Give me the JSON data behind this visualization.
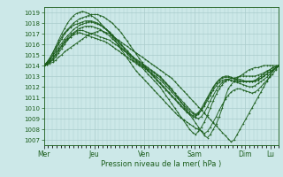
{
  "title": "",
  "xlabel": "Pression niveau de la mer( hPa )",
  "background_color": "#cce8e8",
  "grid_color": "#aacccc",
  "line_color": "#1a5c1a",
  "ylim": [
    1006.5,
    1019.5
  ],
  "yticks": [
    1007,
    1008,
    1009,
    1010,
    1011,
    1012,
    1013,
    1014,
    1015,
    1016,
    1017,
    1018,
    1019
  ],
  "day_labels": [
    "Mer",
    "Jeu",
    "Ven",
    "Sam",
    "Dim",
    "Lu"
  ],
  "day_positions": [
    0,
    48,
    96,
    144,
    192,
    216
  ],
  "xlim": [
    0,
    224
  ],
  "lines": [
    [
      1014.0,
      1014.1,
      1014.2,
      1014.3,
      1014.5,
      1014.8,
      1015.0,
      1015.3,
      1015.5,
      1015.7,
      1015.9,
      1016.1,
      1016.3,
      1016.5,
      1016.7,
      1016.9,
      1017.0,
      1017.1,
      1017.2,
      1017.3,
      1017.2,
      1017.1,
      1017.0,
      1016.8,
      1016.6,
      1016.4,
      1016.2,
      1016.0,
      1015.8,
      1015.6,
      1015.4,
      1015.2,
      1015.0,
      1014.8,
      1014.6,
      1014.4,
      1014.2,
      1014.0,
      1013.8,
      1013.6,
      1013.4,
      1013.2,
      1013.0,
      1012.8,
      1012.5,
      1012.2,
      1011.9,
      1011.6,
      1011.3,
      1011.0,
      1010.7,
      1010.4,
      1010.1,
      1009.8,
      1009.5,
      1009.2,
      1008.9,
      1008.6,
      1008.3,
      1008.0,
      1007.7,
      1007.4,
      1007.1,
      1006.8,
      1007.0,
      1007.5,
      1008.0,
      1008.5,
      1009.0,
      1009.5,
      1010.0,
      1010.5,
      1011.0,
      1011.5,
      1012.0,
      1012.5,
      1013.0,
      1013.5,
      1013.8,
      1014.0
    ],
    [
      1014.0,
      1014.1,
      1014.3,
      1014.5,
      1014.8,
      1015.2,
      1015.6,
      1016.0,
      1016.4,
      1016.7,
      1017.0,
      1017.2,
      1017.3,
      1017.3,
      1017.2,
      1017.1,
      1017.0,
      1016.9,
      1016.8,
      1016.7,
      1016.6,
      1016.5,
      1016.4,
      1016.2,
      1016.0,
      1015.8,
      1015.6,
      1015.4,
      1015.2,
      1015.0,
      1014.8,
      1014.6,
      1014.4,
      1014.2,
      1014.0,
      1013.8,
      1013.6,
      1013.4,
      1013.2,
      1013.0,
      1012.7,
      1012.4,
      1012.1,
      1011.8,
      1011.4,
      1011.0,
      1010.6,
      1010.2,
      1009.8,
      1009.4,
      1009.0,
      1008.6,
      1008.2,
      1007.8,
      1007.4,
      1007.2,
      1007.5,
      1008.0,
      1008.5,
      1009.2,
      1010.0,
      1011.0,
      1011.8,
      1012.2,
      1012.5,
      1012.8,
      1013.0,
      1013.2,
      1013.4,
      1013.6,
      1013.7,
      1013.8,
      1013.8,
      1013.9,
      1014.0,
      1014.0,
      1014.0,
      1014.0,
      1014.0,
      1014.0
    ],
    [
      1014.0,
      1014.1,
      1014.3,
      1014.6,
      1015.0,
      1015.4,
      1015.8,
      1016.2,
      1016.5,
      1016.7,
      1016.9,
      1017.0,
      1017.1,
      1017.0,
      1016.9,
      1016.8,
      1016.7,
      1016.6,
      1016.5,
      1016.4,
      1016.3,
      1016.2,
      1016.0,
      1015.8,
      1015.6,
      1015.4,
      1015.2,
      1015.0,
      1014.8,
      1014.6,
      1014.4,
      1014.2,
      1014.0,
      1013.8,
      1013.5,
      1013.2,
      1012.9,
      1012.6,
      1012.3,
      1012.0,
      1011.6,
      1011.2,
      1010.8,
      1010.4,
      1010.0,
      1009.6,
      1009.2,
      1008.8,
      1008.4,
      1008.0,
      1007.7,
      1007.5,
      1007.8,
      1008.2,
      1008.7,
      1009.3,
      1010.0,
      1010.7,
      1011.3,
      1011.8,
      1012.2,
      1012.5,
      1012.7,
      1012.8,
      1012.8,
      1012.9,
      1013.0,
      1013.0,
      1013.0,
      1013.0,
      1013.0,
      1013.0,
      1013.1,
      1013.2,
      1013.3,
      1013.5,
      1013.6,
      1013.8,
      1013.9,
      1014.0
    ],
    [
      1014.0,
      1014.2,
      1014.4,
      1014.7,
      1015.1,
      1015.5,
      1015.9,
      1016.3,
      1016.6,
      1016.9,
      1017.1,
      1017.3,
      1017.5,
      1017.6,
      1017.7,
      1017.7,
      1017.7,
      1017.6,
      1017.5,
      1017.4,
      1017.2,
      1017.0,
      1016.8,
      1016.5,
      1016.3,
      1016.0,
      1015.7,
      1015.4,
      1015.1,
      1014.8,
      1014.5,
      1014.3,
      1014.1,
      1013.9,
      1013.7,
      1013.5,
      1013.3,
      1013.1,
      1012.9,
      1012.7,
      1012.4,
      1012.1,
      1011.8,
      1011.5,
      1011.2,
      1010.9,
      1010.6,
      1010.3,
      1010.0,
      1009.7,
      1009.5,
      1009.3,
      1009.5,
      1009.8,
      1010.2,
      1010.7,
      1011.2,
      1011.7,
      1012.1,
      1012.4,
      1012.6,
      1012.7,
      1012.7,
      1012.6,
      1012.5,
      1012.5,
      1012.5,
      1012.5,
      1012.5,
      1012.5,
      1012.5,
      1012.6,
      1012.7,
      1012.8,
      1013.0,
      1013.2,
      1013.4,
      1013.6,
      1013.8,
      1014.0
    ],
    [
      1014.0,
      1014.2,
      1014.5,
      1014.9,
      1015.3,
      1015.7,
      1016.1,
      1016.5,
      1016.8,
      1017.1,
      1017.4,
      1017.6,
      1017.8,
      1017.9,
      1018.0,
      1018.1,
      1018.1,
      1018.0,
      1017.9,
      1017.8,
      1017.6,
      1017.4,
      1017.2,
      1016.9,
      1016.6,
      1016.3,
      1016.0,
      1015.7,
      1015.4,
      1015.1,
      1014.8,
      1014.5,
      1014.3,
      1014.1,
      1013.9,
      1013.7,
      1013.5,
      1013.3,
      1013.1,
      1012.9,
      1012.6,
      1012.3,
      1012.0,
      1011.7,
      1011.4,
      1011.1,
      1010.8,
      1010.5,
      1010.2,
      1009.9,
      1009.6,
      1009.4,
      1009.6,
      1010.0,
      1010.5,
      1011.0,
      1011.5,
      1012.0,
      1012.4,
      1012.7,
      1012.9,
      1013.0,
      1013.0,
      1012.9,
      1012.8,
      1012.7,
      1012.7,
      1012.6,
      1012.5,
      1012.5,
      1012.5,
      1012.5,
      1012.6,
      1012.8,
      1013.0,
      1013.2,
      1013.4,
      1013.6,
      1013.8,
      1014.0
    ],
    [
      1014.0,
      1014.2,
      1014.5,
      1015.0,
      1015.5,
      1016.0,
      1016.5,
      1017.0,
      1017.3,
      1017.6,
      1017.8,
      1017.9,
      1018.0,
      1018.1,
      1018.2,
      1018.2,
      1018.2,
      1018.1,
      1018.0,
      1017.8,
      1017.6,
      1017.4,
      1017.1,
      1016.8,
      1016.5,
      1016.2,
      1015.9,
      1015.6,
      1015.3,
      1015.0,
      1014.7,
      1014.4,
      1014.2,
      1014.0,
      1013.8,
      1013.6,
      1013.3,
      1013.0,
      1012.7,
      1012.4,
      1012.1,
      1011.8,
      1011.5,
      1011.2,
      1010.9,
      1010.6,
      1010.3,
      1010.0,
      1009.7,
      1009.5,
      1009.3,
      1009.2,
      1009.4,
      1009.8,
      1010.3,
      1010.9,
      1011.4,
      1011.9,
      1012.3,
      1012.6,
      1012.8,
      1012.9,
      1012.9,
      1012.8,
      1012.7,
      1012.6,
      1012.5,
      1012.5,
      1012.5,
      1012.5,
      1012.5,
      1012.6,
      1012.8,
      1013.0,
      1013.2,
      1013.4,
      1013.6,
      1013.8,
      1013.9,
      1014.0
    ],
    [
      1014.0,
      1014.3,
      1014.7,
      1015.2,
      1015.7,
      1016.2,
      1016.7,
      1017.1,
      1017.4,
      1017.7,
      1018.0,
      1018.2,
      1018.4,
      1018.5,
      1018.6,
      1018.7,
      1018.8,
      1018.8,
      1018.8,
      1018.7,
      1018.6,
      1018.4,
      1018.2,
      1018.0,
      1017.7,
      1017.4,
      1017.1,
      1016.7,
      1016.3,
      1015.9,
      1015.5,
      1015.1,
      1014.7,
      1014.3,
      1013.9,
      1013.5,
      1013.2,
      1012.9,
      1012.6,
      1012.3,
      1012.0,
      1011.7,
      1011.4,
      1011.1,
      1010.8,
      1010.5,
      1010.2,
      1009.9,
      1009.6,
      1009.4,
      1009.2,
      1009.1,
      1009.0,
      1009.2,
      1009.6,
      1010.1,
      1010.7,
      1011.2,
      1011.7,
      1012.1,
      1012.4,
      1012.6,
      1012.7,
      1012.6,
      1012.5,
      1012.4,
      1012.3,
      1012.2,
      1012.1,
      1012.0,
      1012.0,
      1012.1,
      1012.3,
      1012.5,
      1012.7,
      1012.9,
      1013.2,
      1013.5,
      1013.7,
      1014.0
    ],
    [
      1014.0,
      1014.3,
      1014.7,
      1015.2,
      1015.8,
      1016.4,
      1017.0,
      1017.5,
      1018.0,
      1018.4,
      1018.7,
      1018.9,
      1019.0,
      1019.1,
      1019.0,
      1018.9,
      1018.7,
      1018.5,
      1018.3,
      1018.0,
      1017.7,
      1017.4,
      1017.1,
      1016.7,
      1016.3,
      1015.9,
      1015.5,
      1015.1,
      1014.7,
      1014.3,
      1013.9,
      1013.5,
      1013.2,
      1012.9,
      1012.6,
      1012.3,
      1012.0,
      1011.7,
      1011.4,
      1011.1,
      1010.8,
      1010.5,
      1010.2,
      1009.9,
      1009.6,
      1009.3,
      1009.1,
      1008.9,
      1008.7,
      1008.5,
      1008.3,
      1008.1,
      1008.0,
      1007.8,
      1007.6,
      1007.8,
      1008.2,
      1008.7,
      1009.2,
      1009.8,
      1010.3,
      1010.8,
      1011.2,
      1011.5,
      1011.7,
      1011.8,
      1011.8,
      1011.7,
      1011.6,
      1011.5,
      1011.4,
      1011.5,
      1011.7,
      1012.0,
      1012.3,
      1012.6,
      1012.9,
      1013.2,
      1013.6,
      1014.0
    ]
  ]
}
